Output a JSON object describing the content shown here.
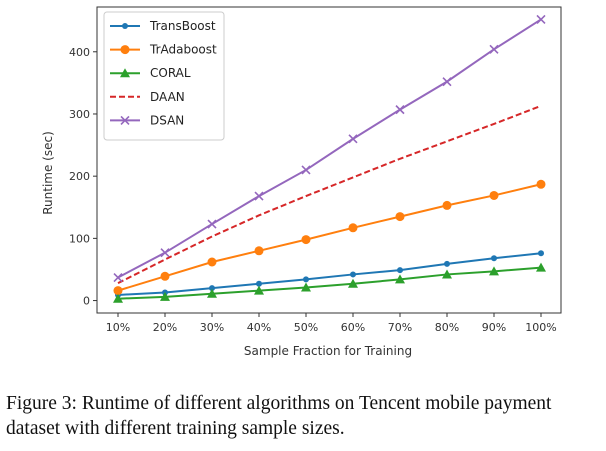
{
  "chart_data": {
    "type": "line",
    "xlabel": "Sample Fraction for Training",
    "ylabel": "Runtime (sec)",
    "categories": [
      "10%",
      "20%",
      "30%",
      "40%",
      "50%",
      "60%",
      "70%",
      "80%",
      "90%",
      "100%"
    ],
    "yticks": [
      0,
      100,
      200,
      300,
      400
    ],
    "ylim": [
      -20,
      472
    ],
    "grid": false,
    "legend_position": "top-left",
    "series": [
      {
        "name": "TransBoost",
        "color": "#1f77b4",
        "marker": "dot",
        "dashed": false,
        "values": [
          9,
          13,
          20,
          27,
          34,
          42,
          49,
          59,
          68,
          76
        ]
      },
      {
        "name": "TrAdaboost",
        "color": "#ff7f0e",
        "marker": "circle",
        "dashed": false,
        "values": [
          16,
          39,
          62,
          80,
          98,
          117,
          135,
          153,
          169,
          187
        ]
      },
      {
        "name": "CORAL",
        "color": "#2ca02c",
        "marker": "triangle",
        "dashed": false,
        "values": [
          3,
          6,
          11,
          16,
          21,
          27,
          34,
          42,
          47,
          53
        ]
      },
      {
        "name": "DAAN",
        "color": "#d62728",
        "marker": "none",
        "dashed": true,
        "values": [
          28,
          66,
          103,
          137,
          168,
          198,
          228,
          256,
          284,
          313
        ]
      },
      {
        "name": "DSAN",
        "color": "#9467bd",
        "marker": "x",
        "dashed": false,
        "values": [
          37,
          77,
          123,
          168,
          210,
          260,
          307,
          352,
          404,
          452
        ]
      }
    ]
  },
  "caption": "Figure 3: Runtime of different algorithms on Tencent mobile payment dataset with different training sample sizes."
}
